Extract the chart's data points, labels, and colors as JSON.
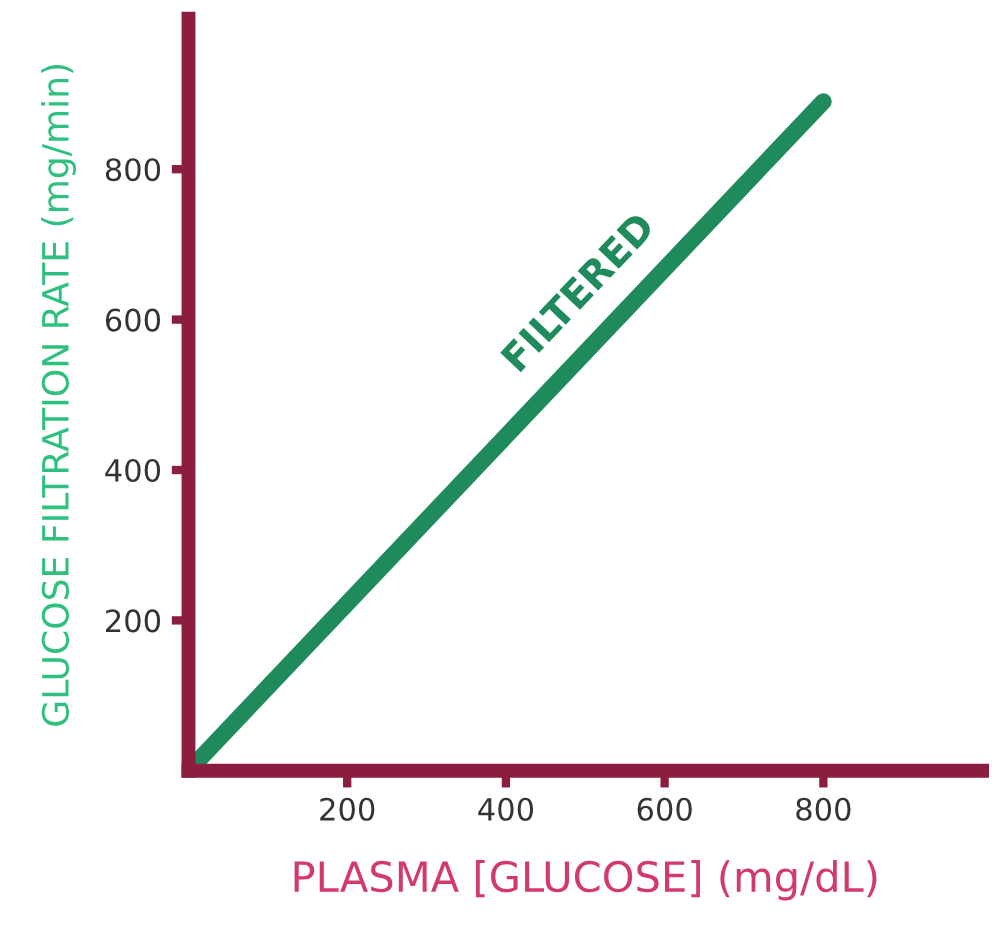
{
  "chart_data": {
    "type": "line",
    "xlabel": "PLASMA [GLUCOSE] (mg/dL)",
    "ylabel": "GLUCOSE FILTRATION RATE (mg/min)",
    "x": [
      0,
      800
    ],
    "series": [
      {
        "color": "#1f8a5b",
        "values": [
          0,
          890
        ]
      }
    ],
    "xlim": [
      0,
      1000
    ],
    "ylim": [
      0,
      1000
    ],
    "xticks": [
      200,
      400,
      600,
      800
    ],
    "yticks": [
      200,
      400,
      600,
      800
    ],
    "annotations": [
      "FILTERED"
    ],
    "grid": false,
    "legend": false,
    "marker": "none",
    "line_style": "solid"
  }
}
